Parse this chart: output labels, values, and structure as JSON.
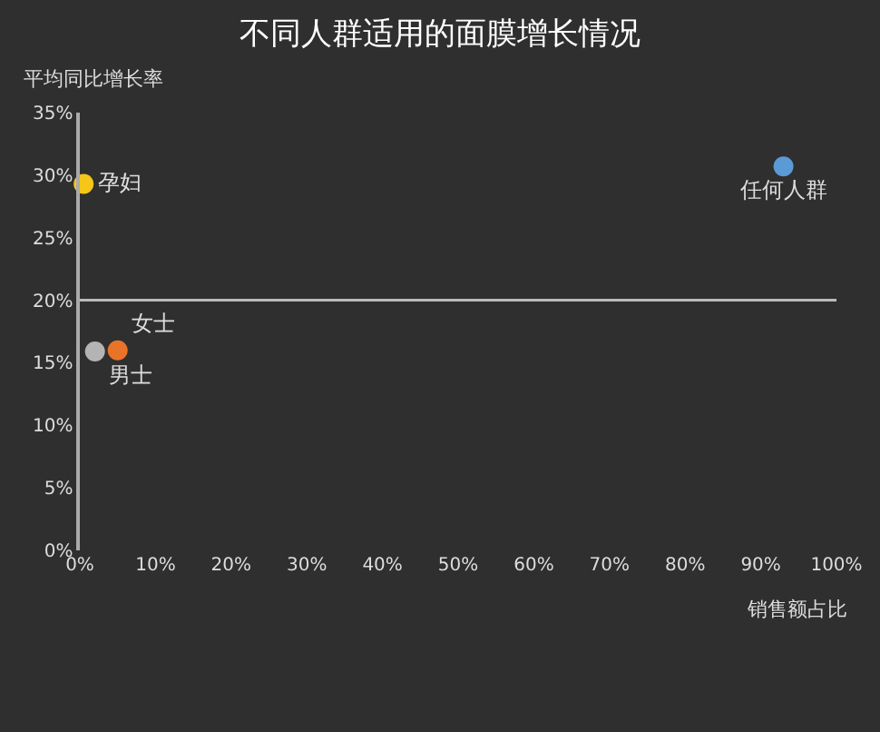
{
  "chart_data": {
    "type": "scatter",
    "title": "不同人群适用的面膜增长情况",
    "xlabel": "销售额占比",
    "ylabel": "平均同比增长率",
    "series": [
      {
        "name": "孕妇",
        "color": "#f5c518",
        "x": [
          0.5
        ],
        "values": [
          29.3
        ]
      },
      {
        "name": "女士",
        "color": "#e8742a",
        "x": [
          5
        ],
        "values": [
          16
        ]
      },
      {
        "name": "男士",
        "color": "#b4b4b4",
        "x": [
          2
        ],
        "values": [
          15.9
        ]
      },
      {
        "name": "任何人群",
        "color": "#5b9bd5",
        "x": [
          93
        ],
        "values": [
          30.7
        ]
      }
    ],
    "xlim": [
      0,
      100
    ],
    "xticks": [
      {
        "value": 0,
        "label": "0%"
      },
      {
        "value": 10,
        "label": "10%"
      },
      {
        "value": 20,
        "label": "20%"
      },
      {
        "value": 30,
        "label": "30%"
      },
      {
        "value": 40,
        "label": "40%"
      },
      {
        "value": 50,
        "label": "50%"
      },
      {
        "value": 60,
        "label": "60%"
      },
      {
        "value": 70,
        "label": "70%"
      },
      {
        "value": 80,
        "label": "80%"
      },
      {
        "value": 90,
        "label": "90%"
      },
      {
        "value": 100,
        "label": "100%"
      }
    ],
    "ylim": [
      0,
      35
    ],
    "yticks": [
      {
        "value": 0,
        "label": "0%"
      },
      {
        "value": 5,
        "label": "5%"
      },
      {
        "value": 10,
        "label": "10%"
      },
      {
        "value": 15,
        "label": "15%"
      },
      {
        "value": 20,
        "label": "20%"
      },
      {
        "value": 25,
        "label": "25%"
      },
      {
        "value": 30,
        "label": "30%"
      },
      {
        "value": 35,
        "label": "35%"
      }
    ],
    "ref_lines": [
      {
        "axis": "y",
        "value": 20,
        "color": "#bbbbbb"
      }
    ],
    "marker": "circle",
    "grid": false,
    "legend": false
  }
}
